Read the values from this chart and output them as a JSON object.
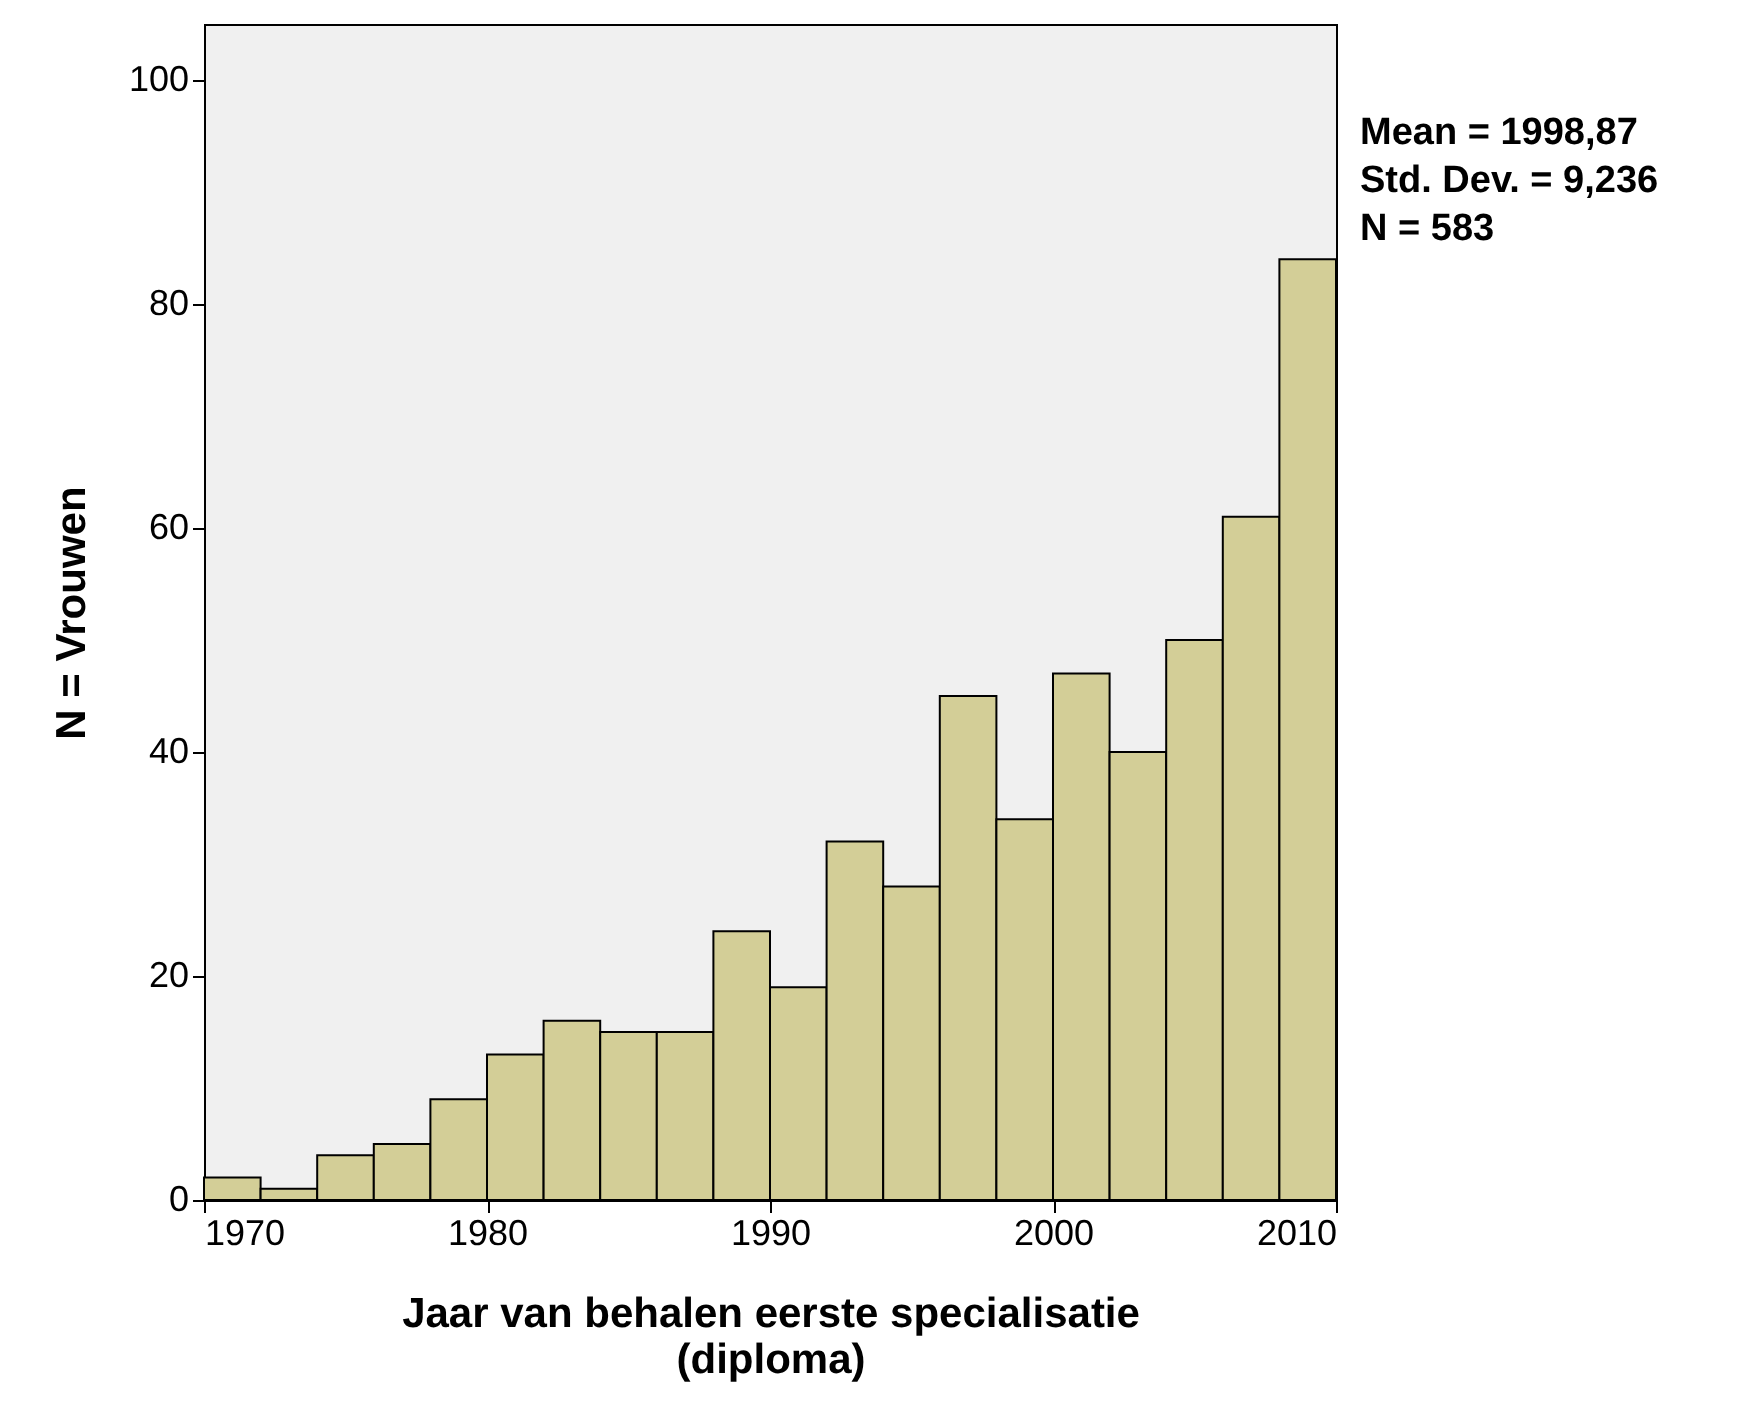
{
  "chart_data": {
    "type": "histogram",
    "xlabel": "Jaar van behalen eerste specialisatie\n(diploma)",
    "ylabel": "N = Vrouwen",
    "bins": [
      1970,
      1972,
      1974,
      1976,
      1978,
      1980,
      1982,
      1984,
      1986,
      1988,
      1990,
      1992,
      1994,
      1996,
      1998,
      2000,
      2002,
      2004,
      2006,
      2008,
      2010
    ],
    "values": [
      2,
      1,
      4,
      5,
      9,
      13,
      16,
      15,
      15,
      24,
      19,
      32,
      28,
      45,
      34,
      47,
      40,
      50,
      61,
      84
    ],
    "color": "#d3ce97",
    "xlim": [
      1970,
      2010
    ],
    "xticks": [
      1970,
      1980,
      1990,
      2000,
      2010
    ],
    "ylim": [
      0,
      105
    ],
    "yticks": [
      0,
      20,
      40,
      60,
      80,
      100
    ],
    "grid": false,
    "annotations": [
      "Mean = 1998,87",
      "Std. Dev. = 9,236",
      "N = 583"
    ]
  }
}
